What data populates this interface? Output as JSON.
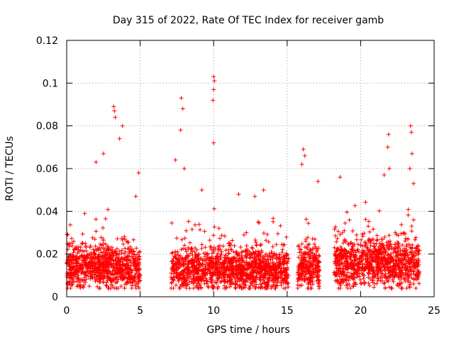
{
  "chart_data": {
    "type": "scatter",
    "title": "Day 315 of 2022, Rate Of TEC Index for receiver gamb",
    "xlabel": "GPS time / hours",
    "ylabel": "ROTI / TECUs",
    "xlim": [
      0,
      25
    ],
    "ylim": [
      0,
      0.12
    ],
    "x_ticks": [
      0,
      5,
      10,
      15,
      20,
      25
    ],
    "x_tick_labels": [
      "0",
      "5",
      "10",
      "15",
      "20",
      "25"
    ],
    "y_ticks": [
      0,
      0.02,
      0.04,
      0.06,
      0.08,
      0.1,
      0.12
    ],
    "y_tick_labels": [
      "0",
      "0.02",
      "0.04",
      "0.06",
      "0.08",
      "0.1",
      "0.12"
    ],
    "grid": true,
    "grid_style": "dotted",
    "marker": "+",
    "color": "#ff0000",
    "coverage_segments": [
      {
        "start": 0.0,
        "end": 5.0,
        "base": 0.014,
        "spread": 0.006
      },
      {
        "start": 7.1,
        "end": 15.1,
        "base": 0.013,
        "spread": 0.006
      },
      {
        "start": 15.7,
        "end": 17.2,
        "base": 0.014,
        "spread": 0.006
      },
      {
        "start": 18.2,
        "end": 24.0,
        "base": 0.016,
        "spread": 0.007
      }
    ],
    "notable_points": [
      {
        "x": 3.2,
        "y": 0.089
      },
      {
        "x": 3.25,
        "y": 0.087
      },
      {
        "x": 3.3,
        "y": 0.084
      },
      {
        "x": 3.8,
        "y": 0.08
      },
      {
        "x": 3.6,
        "y": 0.074
      },
      {
        "x": 2.0,
        "y": 0.063
      },
      {
        "x": 2.5,
        "y": 0.067
      },
      {
        "x": 4.9,
        "y": 0.058
      },
      {
        "x": 4.7,
        "y": 0.047
      },
      {
        "x": 7.4,
        "y": 0.064
      },
      {
        "x": 7.8,
        "y": 0.093
      },
      {
        "x": 7.9,
        "y": 0.088
      },
      {
        "x": 7.75,
        "y": 0.078
      },
      {
        "x": 8.0,
        "y": 0.06
      },
      {
        "x": 9.2,
        "y": 0.05
      },
      {
        "x": 10.0,
        "y": 0.103
      },
      {
        "x": 10.05,
        "y": 0.101
      },
      {
        "x": 10.0,
        "y": 0.097
      },
      {
        "x": 9.95,
        "y": 0.092
      },
      {
        "x": 10.0,
        "y": 0.072
      },
      {
        "x": 11.7,
        "y": 0.048
      },
      {
        "x": 12.8,
        "y": 0.047
      },
      {
        "x": 13.4,
        "y": 0.05
      },
      {
        "x": 16.1,
        "y": 0.069
      },
      {
        "x": 16.2,
        "y": 0.066
      },
      {
        "x": 16.0,
        "y": 0.062
      },
      {
        "x": 17.1,
        "y": 0.054
      },
      {
        "x": 18.6,
        "y": 0.056
      },
      {
        "x": 21.6,
        "y": 0.057
      },
      {
        "x": 21.9,
        "y": 0.076
      },
      {
        "x": 21.85,
        "y": 0.07
      },
      {
        "x": 21.95,
        "y": 0.06
      },
      {
        "x": 23.4,
        "y": 0.08
      },
      {
        "x": 23.45,
        "y": 0.077
      },
      {
        "x": 23.5,
        "y": 0.067
      },
      {
        "x": 23.35,
        "y": 0.06
      },
      {
        "x": 23.6,
        "y": 0.053
      }
    ]
  }
}
